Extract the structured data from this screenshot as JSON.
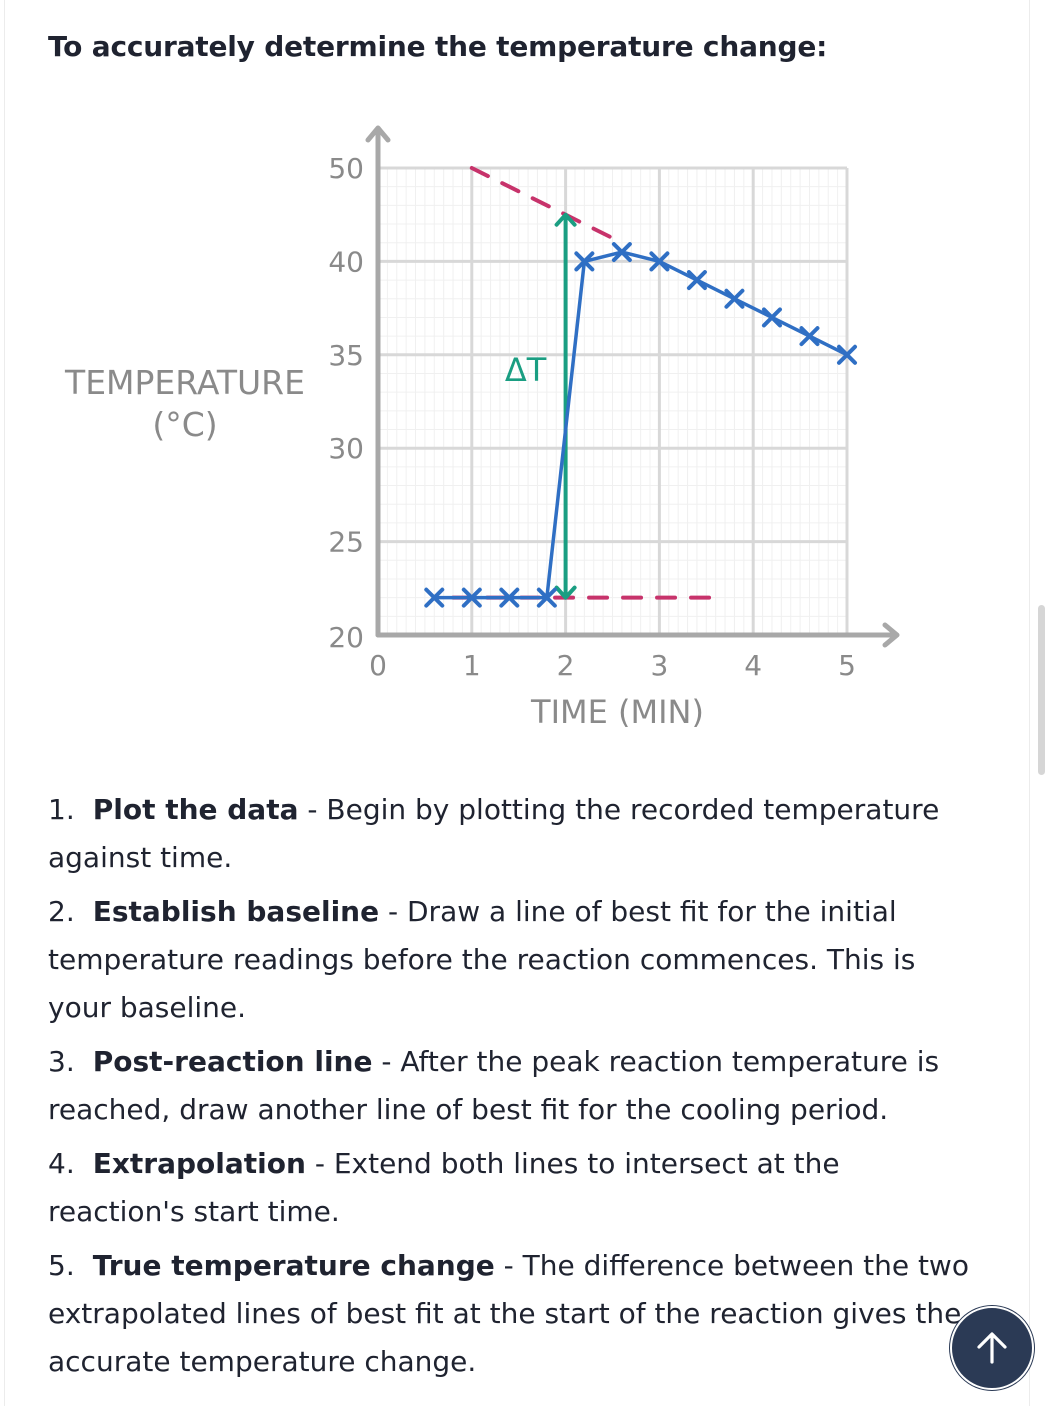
{
  "heading": "To accurately determine the temperature change:",
  "chart_data": {
    "type": "line",
    "xlabel": "TIME (MIN)",
    "ylabel": "TEMPERATURE (°C)",
    "x_ticks": [
      0,
      1,
      2,
      3,
      4,
      5
    ],
    "y_ticks": [
      20,
      25,
      30,
      35,
      40,
      50
    ],
    "xlim": [
      0,
      5
    ],
    "ylim": [
      20,
      50
    ],
    "grid": true,
    "series": [
      {
        "points": [
          [
            0.6,
            22
          ],
          [
            1.0,
            22
          ],
          [
            1.4,
            22
          ],
          [
            1.8,
            22
          ],
          [
            2.2,
            40
          ],
          [
            2.6,
            41
          ],
          [
            3.0,
            40
          ],
          [
            3.4,
            39
          ],
          [
            3.8,
            38
          ],
          [
            4.2,
            37
          ],
          [
            4.6,
            36
          ],
          [
            5.0,
            35
          ]
        ]
      }
    ],
    "baseline_extrapolation": [
      [
        0.8,
        22
      ],
      [
        3.6,
        22
      ]
    ],
    "cooling_extrapolation": [
      [
        1.0,
        50
      ],
      [
        2.6,
        42
      ]
    ],
    "delta_arrow": {
      "x": 2,
      "from": 22,
      "to": 45,
      "label": "ΔT"
    },
    "colors": {
      "data": "#2f6fc4",
      "extrapolation": "#c7336b",
      "delta": "#1a9e82",
      "axis": "#a8a8a8",
      "grid": "#d8d8d8"
    }
  },
  "steps": [
    {
      "num": "1.",
      "title": "Plot the data",
      "text": " - Begin by plotting the recorded temperature against time."
    },
    {
      "num": "2.",
      "title": "Establish baseline",
      "text": " - Draw a line of best fit for the initial temperature readings before the reaction commences. This is your baseline."
    },
    {
      "num": "3.",
      "title": "Post-reaction line",
      "text": " - After the peak reaction temperature is reached, draw another line of best fit for the cooling period."
    },
    {
      "num": "4.",
      "title": "Extrapolation",
      "text": " - Extend both lines to intersect at the reaction's start time."
    },
    {
      "num": "5.",
      "title": "True temperature change",
      "text": " - The difference between the two extrapolated lines of best fit at the start of the reaction gives the accurate temperature change."
    }
  ],
  "scroll_top": {
    "icon": "arrow-up-icon",
    "color": "#2b3a55"
  }
}
